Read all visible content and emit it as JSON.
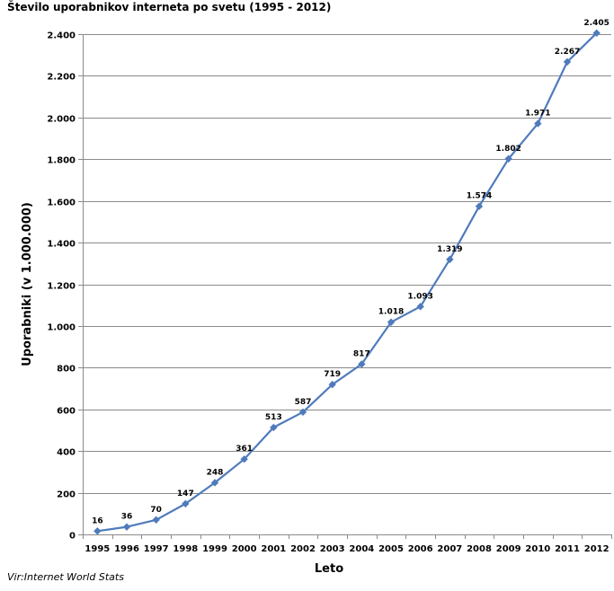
{
  "chart_data": {
    "type": "line",
    "title": "Število uporabnikov interneta po svetu (1995 - 2012)",
    "xlabel": "Leto",
    "ylabel": "Uporabniki  (v 1.000.000)",
    "source": "Vir:Internet World Stats",
    "categories": [
      "1995",
      "1996",
      "1997",
      "1998",
      "1999",
      "2000",
      "2001",
      "2002",
      "2003",
      "2004",
      "2005",
      "2006",
      "2007",
      "2008",
      "2009",
      "2010",
      "2011",
      "2012"
    ],
    "series": [
      {
        "values": [
          16,
          36,
          70,
          147,
          248,
          361,
          513,
          587,
          719,
          817,
          1018,
          1093,
          1319,
          1574,
          1802,
          1971,
          2267,
          2405
        ],
        "labels": [
          "16",
          "36",
          "70",
          "147",
          "248",
          "361",
          "513",
          "587",
          "719",
          "817",
          "1.018",
          "1.093",
          "1.319",
          "1.574",
          "1.802",
          "1.971",
          "2.267",
          "2.405"
        ],
        "color": "#4f7bbd",
        "marker": "diamond"
      }
    ],
    "ylim": [
      0,
      2400
    ],
    "yticks": [
      0,
      200,
      400,
      600,
      800,
      1000,
      1200,
      1400,
      1600,
      1800,
      2000,
      2200,
      2400
    ],
    "ytick_labels": [
      "0",
      "200",
      "400",
      "600",
      "800",
      "1.000",
      "1.200",
      "1.400",
      "1.600",
      "1.800",
      "2.000",
      "2.200",
      "2.400"
    ],
    "grid": true,
    "legend": false
  }
}
